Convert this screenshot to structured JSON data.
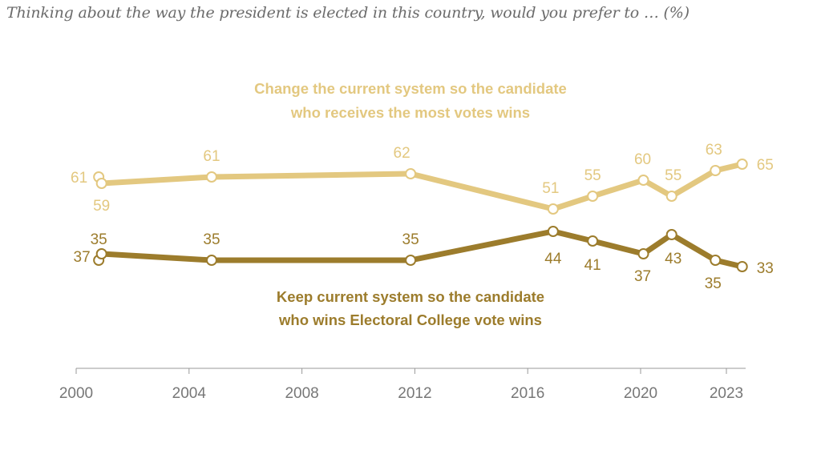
{
  "chart_data": {
    "type": "line",
    "title": "Thinking about the way the president is elected in this country, would you prefer to … (%)",
    "xlabel": "",
    "ylabel": "",
    "xlim": [
      2000,
      2023.8
    ],
    "x_ticks": [
      2000,
      2004,
      2008,
      2012,
      2016,
      2020,
      2023
    ],
    "grid": false,
    "series": [
      {
        "name": "Change the current system so the candidate who receives the most votes wins",
        "name_lines": [
          "Change the current system so the candidate",
          "who receives the most votes wins"
        ],
        "color": "#E3C880",
        "x": [
          2000.8,
          2000.9,
          2004.8,
          2011.85,
          2016.9,
          2018.3,
          2020.1,
          2021.1,
          2022.65,
          2023.6
        ],
        "values": [
          61,
          59,
          61,
          62,
          51,
          55,
          60,
          55,
          63,
          65
        ]
      },
      {
        "name": "Keep current system so the candidate who wins Electoral College vote wins",
        "name_lines": [
          "Keep current system so the candidate",
          "who wins Electoral College vote wins"
        ],
        "color": "#9C7C2C",
        "x": [
          2000.8,
          2000.9,
          2004.8,
          2011.85,
          2016.9,
          2018.3,
          2020.1,
          2021.1,
          2022.65,
          2023.6
        ],
        "values": [
          35,
          37,
          35,
          35,
          44,
          41,
          37,
          43,
          35,
          33
        ]
      }
    ]
  }
}
